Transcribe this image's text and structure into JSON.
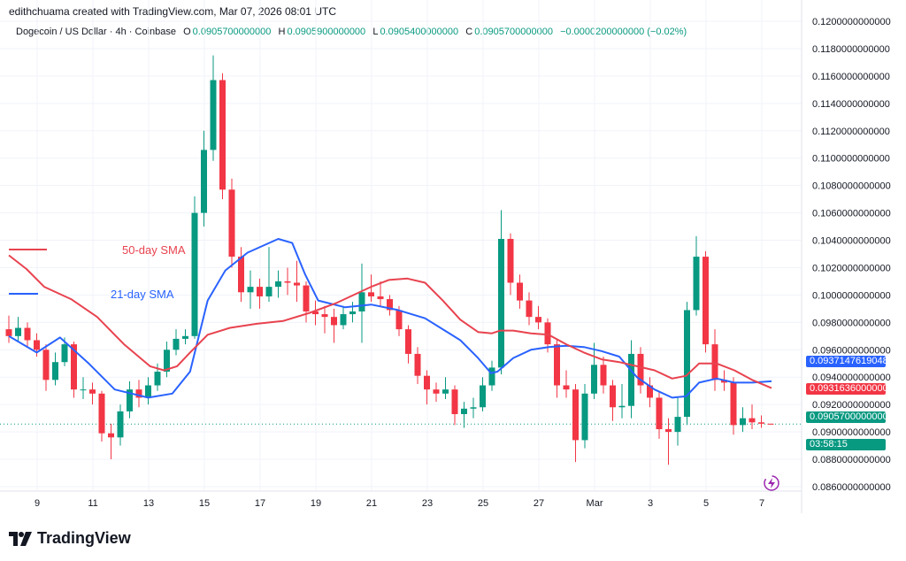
{
  "credit": "edithchuama created with TradingView.com, Mar 07, 2026 08:01 UTC",
  "header": {
    "symbol": "Dogecoin / US Dollar · 4h · Coinbase",
    "o_label": "O",
    "o": "0.0905700000000",
    "h_label": "H",
    "h": "0.0905900000000",
    "l_label": "L",
    "l": "0.0905400000000",
    "c_label": "C",
    "c": "0.0905700000000",
    "change": "−0.0000200000000 (−0.02%)"
  },
  "tags": {
    "sma21": "0.0937147619048",
    "sma50": "0.0931636000000",
    "last": "0.0905700000000",
    "countdown": "03:58:15"
  },
  "footer": {
    "brand": "TradingView"
  },
  "colors": {
    "up": "#089981",
    "down": "#f23645",
    "sma21": "#2962ff",
    "sma50": "#e8434f",
    "last": "#089981"
  },
  "icons": [
    "tradingview-logo-icon",
    "lightning-icon"
  ],
  "chart_data": {
    "type": "candlestick",
    "title": "",
    "ylim": [
      0.086,
      0.12
    ],
    "yticks": [
      "0.1200000000000",
      "0.1180000000000",
      "0.1160000000000",
      "0.1140000000000",
      "0.1120000000000",
      "0.1100000000000",
      "0.1080000000000",
      "0.1060000000000",
      "0.1040000000000",
      "0.1020000000000",
      "0.1000000000000",
      "0.0980000000000",
      "0.0960000000000",
      "0.0940000000000",
      "0.0920000000000",
      "0.0900000000000",
      "0.0880000000000",
      "0.0860000000000"
    ],
    "xticks": [
      "9",
      "11",
      "13",
      "15",
      "17",
      "19",
      "21",
      "23",
      "25",
      "27",
      "Mar",
      "3",
      "5",
      "7"
    ],
    "grid": true,
    "last_price": 0.09057,
    "candles": [
      [
        0.0975,
        0.0985,
        0.0965,
        0.097
      ],
      [
        0.097,
        0.0984,
        0.0966,
        0.0976
      ],
      [
        0.0976,
        0.098,
        0.0962,
        0.0967
      ],
      [
        0.0967,
        0.0972,
        0.0955,
        0.096
      ],
      [
        0.096,
        0.0964,
        0.093,
        0.0938
      ],
      [
        0.0938,
        0.0958,
        0.0934,
        0.0951
      ],
      [
        0.0951,
        0.0969,
        0.0948,
        0.0964
      ],
      [
        0.0964,
        0.0966,
        0.0925,
        0.0931
      ],
      [
        0.0931,
        0.094,
        0.0924,
        0.0931
      ],
      [
        0.0931,
        0.0936,
        0.092,
        0.0928
      ],
      [
        0.0928,
        0.093,
        0.0893,
        0.0899
      ],
      [
        0.0899,
        0.0906,
        0.088,
        0.0896
      ],
      [
        0.0896,
        0.092,
        0.089,
        0.0915
      ],
      [
        0.0915,
        0.0937,
        0.091,
        0.0931
      ],
      [
        0.0931,
        0.0938,
        0.0918,
        0.0925
      ],
      [
        0.0925,
        0.094,
        0.092,
        0.0934
      ],
      [
        0.0934,
        0.095,
        0.093,
        0.0944
      ],
      [
        0.0944,
        0.0966,
        0.094,
        0.096
      ],
      [
        0.096,
        0.0975,
        0.0956,
        0.0968
      ],
      [
        0.0968,
        0.0975,
        0.0964,
        0.097
      ],
      [
        0.097,
        0.1072,
        0.0968,
        0.106
      ],
      [
        0.106,
        0.112,
        0.105,
        0.1106
      ],
      [
        0.1106,
        0.1175,
        0.1098,
        0.1157
      ],
      [
        0.1157,
        0.1162,
        0.107,
        0.1077
      ],
      [
        0.1077,
        0.1085,
        0.102,
        0.1028
      ],
      [
        0.1028,
        0.1035,
        0.0995,
        0.1002
      ],
      [
        0.1002,
        0.1018,
        0.099,
        0.1006
      ],
      [
        0.1006,
        0.1012,
        0.099,
        0.0999
      ],
      [
        0.0999,
        0.1035,
        0.0995,
        0.1006
      ],
      [
        0.1006,
        0.1018,
        0.0998,
        0.101
      ],
      [
        0.101,
        0.102,
        0.1,
        0.1009
      ],
      [
        0.1009,
        0.1025,
        0.0995,
        0.1007
      ],
      [
        0.1007,
        0.101,
        0.098,
        0.0988
      ],
      [
        0.0988,
        0.0996,
        0.0978,
        0.0986
      ],
      [
        0.0986,
        0.0992,
        0.0972,
        0.0984
      ],
      [
        0.0984,
        0.099,
        0.0965,
        0.0978
      ],
      [
        0.0978,
        0.0992,
        0.0975,
        0.0986
      ],
      [
        0.0986,
        0.0995,
        0.098,
        0.0988
      ],
      [
        0.0988,
        0.1023,
        0.0965,
        0.1002
      ],
      [
        0.1002,
        0.1015,
        0.0995,
        0.0999
      ],
      [
        0.0999,
        0.101,
        0.0992,
        0.0997
      ],
      [
        0.0997,
        0.1,
        0.0985,
        0.0989
      ],
      [
        0.0989,
        0.0992,
        0.097,
        0.0975
      ],
      [
        0.0975,
        0.0978,
        0.095,
        0.0957
      ],
      [
        0.0957,
        0.0962,
        0.0935,
        0.0941
      ],
      [
        0.0941,
        0.0945,
        0.092,
        0.0931
      ],
      [
        0.0931,
        0.0936,
        0.0922,
        0.0928
      ],
      [
        0.0928,
        0.094,
        0.0924,
        0.0931
      ],
      [
        0.0931,
        0.0934,
        0.0905,
        0.0913
      ],
      [
        0.0913,
        0.0922,
        0.0903,
        0.0917
      ],
      [
        0.0917,
        0.0925,
        0.091,
        0.0918
      ],
      [
        0.0918,
        0.094,
        0.0915,
        0.0934
      ],
      [
        0.0934,
        0.0952,
        0.093,
        0.0947
      ],
      [
        0.0947,
        0.1062,
        0.0942,
        0.1041
      ],
      [
        0.1041,
        0.1045,
        0.1,
        0.1009
      ],
      [
        0.1009,
        0.1015,
        0.099,
        0.0996
      ],
      [
        0.0996,
        0.1002,
        0.0978,
        0.0984
      ],
      [
        0.0984,
        0.0992,
        0.0975,
        0.098
      ],
      [
        0.098,
        0.0983,
        0.0958,
        0.0964
      ],
      [
        0.0964,
        0.0968,
        0.0925,
        0.0934
      ],
      [
        0.0934,
        0.0945,
        0.0925,
        0.0931
      ],
      [
        0.0931,
        0.0935,
        0.0878,
        0.0894
      ],
      [
        0.0894,
        0.0935,
        0.0888,
        0.0928
      ],
      [
        0.0928,
        0.0965,
        0.0924,
        0.0949
      ],
      [
        0.0949,
        0.0955,
        0.0928,
        0.0934
      ],
      [
        0.0934,
        0.0938,
        0.0908,
        0.0918
      ],
      [
        0.0918,
        0.0935,
        0.091,
        0.0919
      ],
      [
        0.0919,
        0.0967,
        0.091,
        0.0957
      ],
      [
        0.0957,
        0.0962,
        0.0928,
        0.0934
      ],
      [
        0.0934,
        0.094,
        0.0918,
        0.0925
      ],
      [
        0.0925,
        0.093,
        0.0895,
        0.0902
      ],
      [
        0.0902,
        0.091,
        0.0876,
        0.09
      ],
      [
        0.09,
        0.0925,
        0.089,
        0.0911
      ],
      [
        0.0911,
        0.0995,
        0.0905,
        0.0989
      ],
      [
        0.0989,
        0.1043,
        0.0985,
        0.1028
      ],
      [
        0.1028,
        0.1032,
        0.0958,
        0.0964
      ],
      [
        0.0964,
        0.0975,
        0.093,
        0.0938
      ],
      [
        0.0938,
        0.0945,
        0.093,
        0.0936
      ],
      [
        0.0936,
        0.094,
        0.0898,
        0.0905
      ],
      [
        0.0905,
        0.0918,
        0.09,
        0.091
      ],
      [
        0.091,
        0.092,
        0.0902,
        0.0907
      ],
      [
        0.0907,
        0.0912,
        0.0903,
        0.0906
      ],
      [
        0.0906,
        0.0906,
        0.09054,
        0.09057
      ]
    ],
    "series": [
      {
        "name": "21-day SMA",
        "points": [
          [
            0,
            0.097
          ],
          [
            3,
            0.0958
          ],
          [
            5.5,
            0.0969
          ],
          [
            8.6,
            0.095
          ],
          [
            11.4,
            0.0931
          ],
          [
            15,
            0.0925
          ],
          [
            17.6,
            0.0928
          ],
          [
            19.5,
            0.0944
          ],
          [
            21.4,
            0.0996
          ],
          [
            23.3,
            0.1018
          ],
          [
            25.7,
            0.1031
          ],
          [
            29,
            0.1041
          ],
          [
            30.5,
            0.1038
          ],
          [
            31.9,
            0.1015
          ],
          [
            33.3,
            0.0996
          ],
          [
            36.2,
            0.0991
          ],
          [
            39,
            0.0993
          ],
          [
            41.9,
            0.0989
          ],
          [
            44.8,
            0.0983
          ],
          [
            46.7,
            0.0975
          ],
          [
            48.6,
            0.0967
          ],
          [
            50.5,
            0.0954
          ],
          [
            51.9,
            0.0943
          ],
          [
            52.6,
            0.0944
          ],
          [
            54.3,
            0.0954
          ],
          [
            56.2,
            0.096
          ],
          [
            58.1,
            0.0962
          ],
          [
            60,
            0.0963
          ],
          [
            61.9,
            0.0962
          ],
          [
            63.8,
            0.0959
          ],
          [
            65.7,
            0.0955
          ],
          [
            67.6,
            0.094
          ],
          [
            69.5,
            0.0931
          ],
          [
            71.4,
            0.0925
          ],
          [
            72.9,
            0.0926
          ],
          [
            74.3,
            0.0936
          ],
          [
            76.2,
            0.0939
          ],
          [
            78.1,
            0.0936
          ],
          [
            80,
            0.0936
          ],
          [
            82.1,
            0.0937
          ]
        ]
      },
      {
        "name": "50-day SMA",
        "points": [
          [
            0,
            0.1029
          ],
          [
            1.9,
            0.1019
          ],
          [
            3.8,
            0.1006
          ],
          [
            6.7,
            0.0997
          ],
          [
            9.5,
            0.0984
          ],
          [
            12.4,
            0.0964
          ],
          [
            15.2,
            0.0948
          ],
          [
            16.7,
            0.0945
          ],
          [
            18.1,
            0.0948
          ],
          [
            19.5,
            0.0958
          ],
          [
            21.4,
            0.0971
          ],
          [
            23.8,
            0.0976
          ],
          [
            26.7,
            0.0979
          ],
          [
            29.5,
            0.0981
          ],
          [
            32.4,
            0.0987
          ],
          [
            35.2,
            0.0994
          ],
          [
            37.1,
            0.1
          ],
          [
            39,
            0.1006
          ],
          [
            40.9,
            0.1011
          ],
          [
            42.9,
            0.1012
          ],
          [
            44.8,
            0.1009
          ],
          [
            46.7,
            0.0996
          ],
          [
            48.6,
            0.0982
          ],
          [
            50.5,
            0.0973
          ],
          [
            52,
            0.0972
          ],
          [
            52.9,
            0.0974
          ],
          [
            54.3,
            0.0974
          ],
          [
            56.2,
            0.0972
          ],
          [
            58.1,
            0.0971
          ],
          [
            60,
            0.0964
          ],
          [
            61.9,
            0.0958
          ],
          [
            63.8,
            0.0953
          ],
          [
            65.7,
            0.0951
          ],
          [
            67.6,
            0.0948
          ],
          [
            69.5,
            0.0945
          ],
          [
            71.4,
            0.0939
          ],
          [
            72.9,
            0.0941
          ],
          [
            74.3,
            0.095
          ],
          [
            76.2,
            0.095
          ],
          [
            78.1,
            0.0945
          ],
          [
            80,
            0.0938
          ],
          [
            82.1,
            0.0932
          ]
        ]
      }
    ],
    "annotations": [
      "50-day SMA",
      "21-day SMA"
    ]
  }
}
